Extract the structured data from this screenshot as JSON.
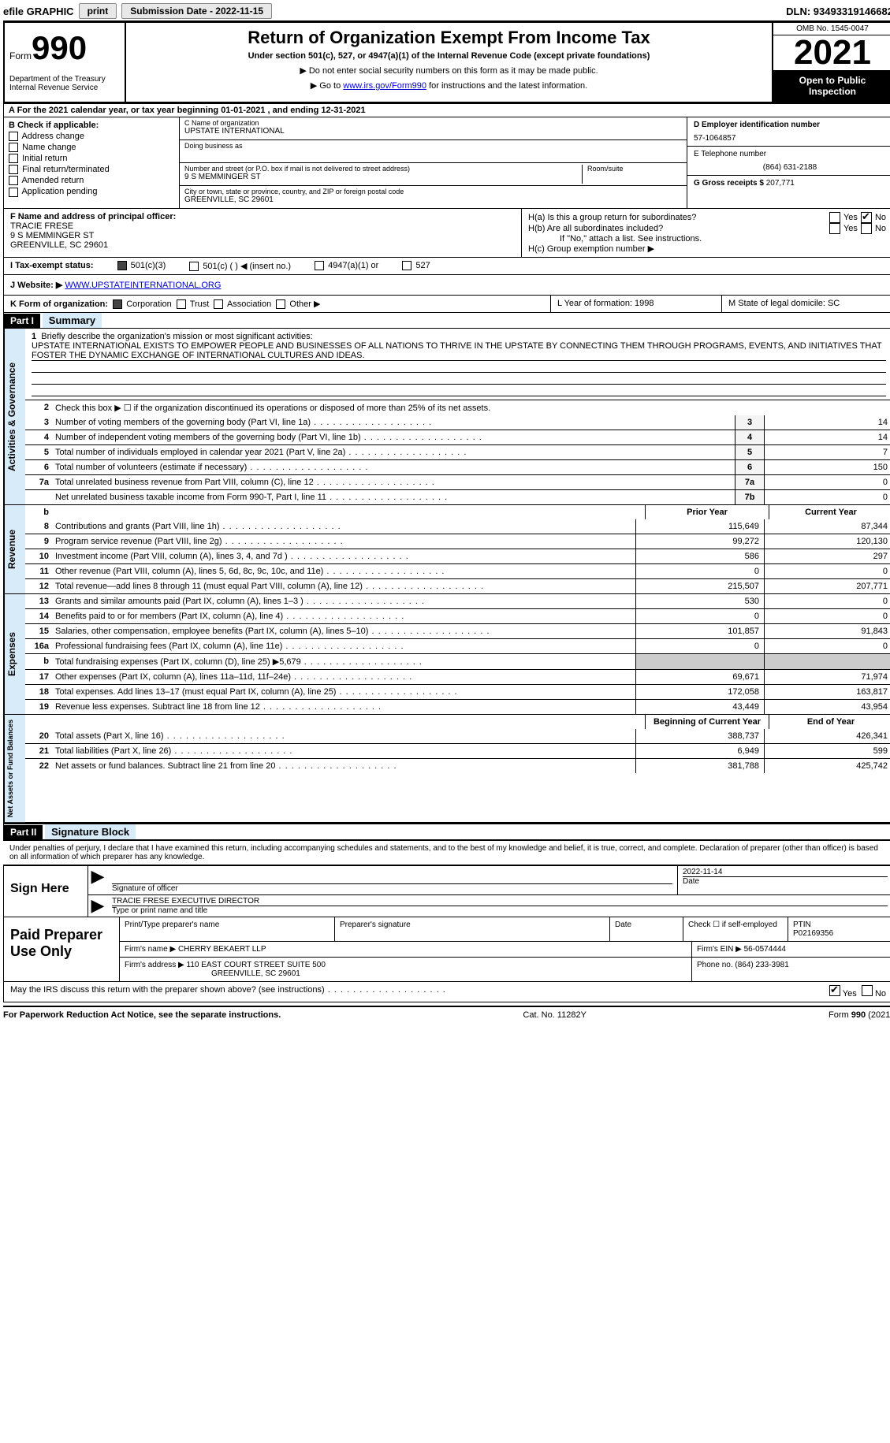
{
  "topbar": {
    "efile": "efile GRAPHIC",
    "print": "print",
    "submission_label": "Submission Date - 2022-11-15",
    "dln": "DLN: 93493319146682"
  },
  "header": {
    "form_prefix": "Form",
    "form_num": "990",
    "dept": "Department of the Treasury\nInternal Revenue Service",
    "title": "Return of Organization Exempt From Income Tax",
    "subtitle": "Under section 501(c), 527, or 4947(a)(1) of the Internal Revenue Code (except private foundations)",
    "note1": "▶ Do not enter social security numbers on this form as it may be made public.",
    "note2_pre": "▶ Go to ",
    "note2_link": "www.irs.gov/Form990",
    "note2_post": " for instructions and the latest information.",
    "omb": "OMB No. 1545-0047",
    "year": "2021",
    "open": "Open to Public Inspection"
  },
  "row_a": "A For the 2021 calendar year, or tax year beginning 01-01-2021   , and ending 12-31-2021",
  "col_b": {
    "label": "B Check if applicable:",
    "items": [
      "Address change",
      "Name change",
      "Initial return",
      "Final return/terminated",
      "Amended return",
      "Application pending"
    ]
  },
  "col_c": {
    "name_label": "C Name of organization",
    "name": "UPSTATE INTERNATIONAL",
    "dba_label": "Doing business as",
    "dba": "",
    "street_label": "Number and street (or P.O. box if mail is not delivered to street address)",
    "room_label": "Room/suite",
    "street": "9 S MEMMINGER ST",
    "city_label": "City or town, state or province, country, and ZIP or foreign postal code",
    "city": "GREENVILLE, SC  29601"
  },
  "col_d": {
    "ein_label": "D Employer identification number",
    "ein": "57-1064857",
    "tel_label": "E Telephone number",
    "tel": "(864) 631-2188",
    "gross_label": "G Gross receipts $",
    "gross": "207,771"
  },
  "row_f": {
    "label": "F  Name and address of principal officer:",
    "name": "TRACIE FRESE",
    "addr1": "9 S MEMMINGER ST",
    "addr2": "GREENVILLE, SC  29601"
  },
  "row_h": {
    "ha": "H(a)  Is this a group return for subordinates?",
    "hb": "H(b)  Are all subordinates included?",
    "hb_note": "If \"No,\" attach a list. See instructions.",
    "hc": "H(c)  Group exemption number ▶"
  },
  "row_i": {
    "label": "I   Tax-exempt status:",
    "o1": "501(c)(3)",
    "o2": "501(c) (  ) ◀ (insert no.)",
    "o3": "4947(a)(1) or",
    "o4": "527"
  },
  "row_j": {
    "label": "J   Website: ▶",
    "url": "WWW.UPSTATEINTERNATIONAL.ORG"
  },
  "row_k": {
    "label": "K Form of organization:",
    "o1": "Corporation",
    "o2": "Trust",
    "o3": "Association",
    "o4": "Other ▶",
    "l": "L Year of formation: 1998",
    "m": "M State of legal domicile: SC"
  },
  "part1": {
    "hdr": "Part I",
    "title": "Summary",
    "side1": "Activities & Governance",
    "side2": "Revenue",
    "side3": "Expenses",
    "side4": "Net Assets or Fund Balances",
    "l1_label": "Briefly describe the organization's mission or most significant activities:",
    "l1_text": "UPSTATE INTERNATIONAL EXISTS TO EMPOWER PEOPLE AND BUSINESSES OF ALL NATIONS TO THRIVE IN THE UPSTATE BY CONNECTING THEM THROUGH PROGRAMS, EVENTS, AND INITIATIVES THAT FOSTER THE DYNAMIC EXCHANGE OF INTERNATIONAL CULTURES AND IDEAS.",
    "l2": "Check this box ▶ ☐ if the organization discontinued its operations or disposed of more than 25% of its net assets.",
    "rows_g": [
      {
        "n": "3",
        "t": "Number of voting members of the governing body (Part VI, line 1a)",
        "box": "3",
        "v": "14"
      },
      {
        "n": "4",
        "t": "Number of independent voting members of the governing body (Part VI, line 1b)",
        "box": "4",
        "v": "14"
      },
      {
        "n": "5",
        "t": "Total number of individuals employed in calendar year 2021 (Part V, line 2a)",
        "box": "5",
        "v": "7"
      },
      {
        "n": "6",
        "t": "Total number of volunteers (estimate if necessary)",
        "box": "6",
        "v": "150"
      },
      {
        "n": "7a",
        "t": "Total unrelated business revenue from Part VIII, column (C), line 12",
        "box": "7a",
        "v": "0"
      },
      {
        "n": "",
        "t": "Net unrelated business taxable income from Form 990-T, Part I, line 11",
        "box": "7b",
        "v": "0"
      }
    ],
    "col_prior": "Prior Year",
    "col_curr": "Current Year",
    "rows_r": [
      {
        "n": "8",
        "t": "Contributions and grants (Part VIII, line 1h)",
        "p": "115,649",
        "c": "87,344"
      },
      {
        "n": "9",
        "t": "Program service revenue (Part VIII, line 2g)",
        "p": "99,272",
        "c": "120,130"
      },
      {
        "n": "10",
        "t": "Investment income (Part VIII, column (A), lines 3, 4, and 7d )",
        "p": "586",
        "c": "297"
      },
      {
        "n": "11",
        "t": "Other revenue (Part VIII, column (A), lines 5, 6d, 8c, 9c, 10c, and 11e)",
        "p": "0",
        "c": "0"
      },
      {
        "n": "12",
        "t": "Total revenue—add lines 8 through 11 (must equal Part VIII, column (A), line 12)",
        "p": "215,507",
        "c": "207,771"
      }
    ],
    "rows_e": [
      {
        "n": "13",
        "t": "Grants and similar amounts paid (Part IX, column (A), lines 1–3 )",
        "p": "530",
        "c": "0"
      },
      {
        "n": "14",
        "t": "Benefits paid to or for members (Part IX, column (A), line 4)",
        "p": "0",
        "c": "0"
      },
      {
        "n": "15",
        "t": "Salaries, other compensation, employee benefits (Part IX, column (A), lines 5–10)",
        "p": "101,857",
        "c": "91,843"
      },
      {
        "n": "16a",
        "t": "Professional fundraising fees (Part IX, column (A), line 11e)",
        "p": "0",
        "c": "0"
      },
      {
        "n": "b",
        "t": "Total fundraising expenses (Part IX, column (D), line 25) ▶5,679",
        "p": "",
        "c": "",
        "grey": true
      },
      {
        "n": "17",
        "t": "Other expenses (Part IX, column (A), lines 11a–11d, 11f–24e)",
        "p": "69,671",
        "c": "71,974"
      },
      {
        "n": "18",
        "t": "Total expenses. Add lines 13–17 (must equal Part IX, column (A), line 25)",
        "p": "172,058",
        "c": "163,817"
      },
      {
        "n": "19",
        "t": "Revenue less expenses. Subtract line 18 from line 12",
        "p": "43,449",
        "c": "43,954"
      }
    ],
    "col_beg": "Beginning of Current Year",
    "col_end": "End of Year",
    "rows_n": [
      {
        "n": "20",
        "t": "Total assets (Part X, line 16)",
        "p": "388,737",
        "c": "426,341"
      },
      {
        "n": "21",
        "t": "Total liabilities (Part X, line 26)",
        "p": "6,949",
        "c": "599"
      },
      {
        "n": "22",
        "t": "Net assets or fund balances. Subtract line 21 from line 20",
        "p": "381,788",
        "c": "425,742"
      }
    ]
  },
  "part2": {
    "hdr": "Part II",
    "title": "Signature Block",
    "decl": "Under penalties of perjury, I declare that I have examined this return, including accompanying schedules and statements, and to the best of my knowledge and belief, it is true, correct, and complete. Declaration of preparer (other than officer) is based on all information of which preparer has any knowledge.",
    "sign_here": "Sign Here",
    "sig_officer": "Signature of officer",
    "sig_date": "2022-11-14",
    "date_label": "Date",
    "name_title": "TRACIE FRESE  EXECUTIVE DIRECTOR",
    "name_label": "Type or print name and title",
    "paid": "Paid Preparer Use Only",
    "p_name_label": "Print/Type preparer's name",
    "p_sig_label": "Preparer's signature",
    "p_date_label": "Date",
    "p_check": "Check ☐ if self-employed",
    "p_ptin_label": "PTIN",
    "p_ptin": "P02169356",
    "firm_name_label": "Firm's name    ▶",
    "firm_name": "CHERRY BEKAERT LLP",
    "firm_ein_label": "Firm's EIN ▶",
    "firm_ein": "56-0574444",
    "firm_addr_label": "Firm's address ▶",
    "firm_addr1": "110 EAST COURT STREET SUITE 500",
    "firm_addr2": "GREENVILLE, SC  29601",
    "firm_phone_label": "Phone no.",
    "firm_phone": "(864) 233-3981",
    "discuss": "May the IRS discuss this return with the preparer shown above? (see instructions)",
    "yes": "Yes",
    "no": "No"
  },
  "footer": {
    "l": "For Paperwork Reduction Act Notice, see the separate instructions.",
    "c": "Cat. No. 11282Y",
    "r": "Form 990 (2021)"
  }
}
